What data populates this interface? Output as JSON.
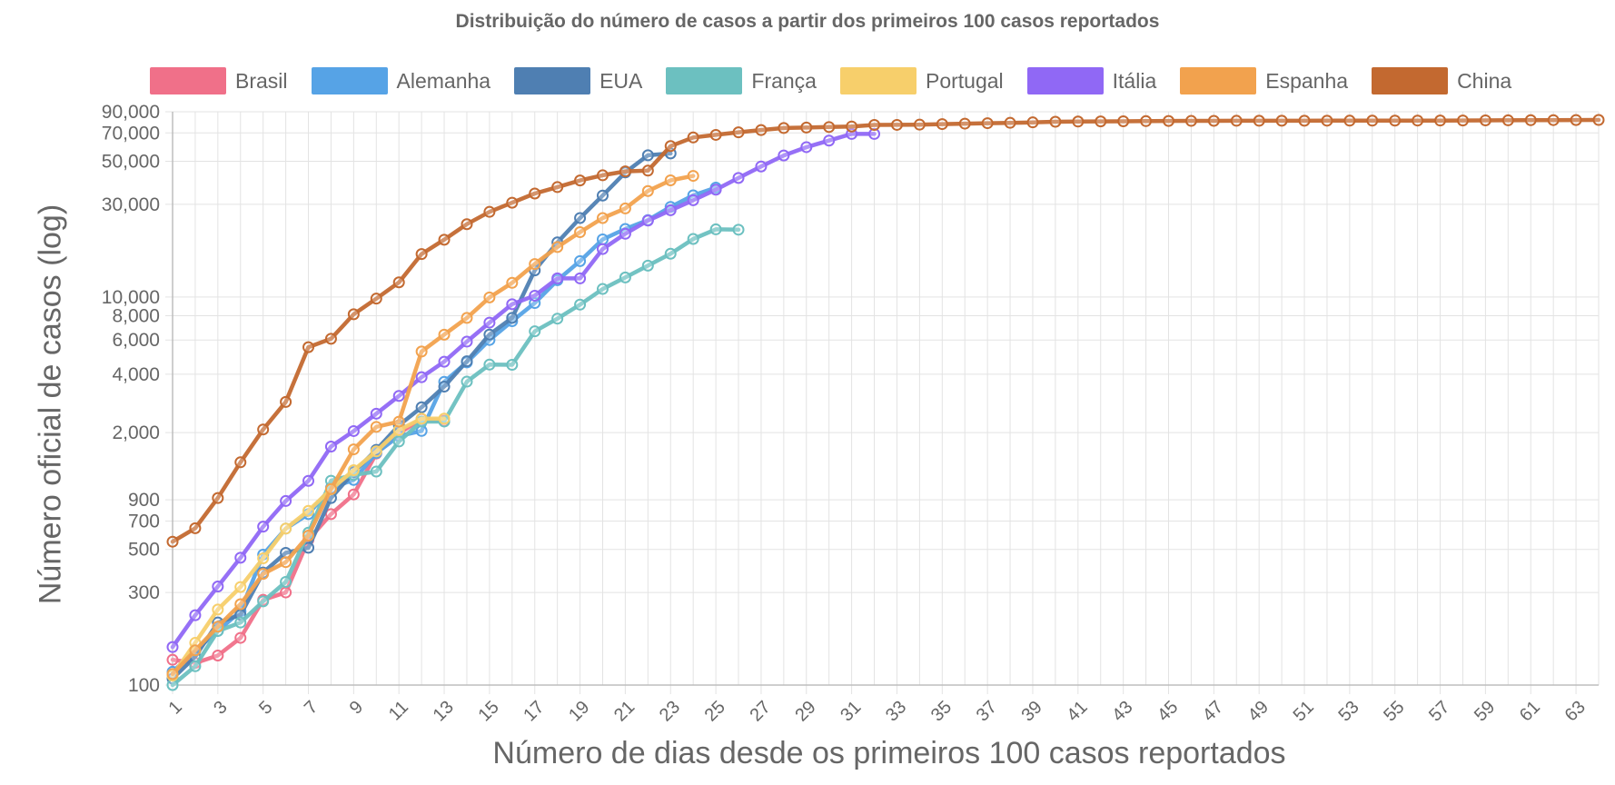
{
  "chart_data": {
    "type": "line",
    "title": "Distribuição do número de casos a partir dos primeiros 100 casos reportados",
    "xlabel": "Número de dias desde os primeiros 100 casos reportados",
    "ylabel": "Número oficial de casos (log)",
    "y_scale": "log",
    "ylim": [
      100,
      90000
    ],
    "xlim": [
      1,
      64
    ],
    "grid": true,
    "legend_position": "top",
    "x_tick_labels": [
      "1",
      "3",
      "5",
      "7",
      "9",
      "11",
      "13",
      "15",
      "17",
      "19",
      "21",
      "23",
      "25",
      "27",
      "29",
      "31",
      "33",
      "35",
      "37",
      "39",
      "41",
      "43",
      "45",
      "47",
      "49",
      "51",
      "53",
      "55",
      "57",
      "59",
      "61",
      "63"
    ],
    "y_tick_labels": [
      {
        "value": 90000,
        "label": "90,000"
      },
      {
        "value": 70000,
        "label": "70,000"
      },
      {
        "value": 50000,
        "label": "50,000"
      },
      {
        "value": 30000,
        "label": "30,000"
      },
      {
        "value": 10000,
        "label": "10,000"
      },
      {
        "value": 8000,
        "label": "8,000"
      },
      {
        "value": 6000,
        "label": "6,000"
      },
      {
        "value": 4000,
        "label": "4,000"
      },
      {
        "value": 2000,
        "label": "2,000"
      },
      {
        "value": 900,
        "label": "900"
      },
      {
        "value": 700,
        "label": "700"
      },
      {
        "value": 500,
        "label": "500"
      },
      {
        "value": 300,
        "label": "300"
      },
      {
        "value": 100,
        "label": "100"
      }
    ],
    "series": [
      {
        "name": "Brasil",
        "color": "#f07089",
        "values": [
          135,
          130,
          142,
          175,
          275,
          300,
          560,
          760,
          960,
          1560,
          1980,
          2350,
          2300
        ]
      },
      {
        "name": "Alemanha",
        "color": "#56a3e6",
        "values": [
          117,
          150,
          190,
          240,
          470,
          640,
          760,
          1040,
          1140,
          1570,
          1920,
          2040,
          3650,
          4600,
          6000,
          7500,
          9300,
          12200,
          15300,
          19800,
          22400,
          24900,
          29100,
          33400,
          36600
        ]
      },
      {
        "name": "EUA",
        "color": "#4f7fb2",
        "values": [
          108,
          140,
          210,
          230,
          380,
          480,
          510,
          920,
          1250,
          1630,
          2180,
          2700,
          3450,
          4660,
          6400,
          7800,
          13700,
          19100,
          25500,
          33300,
          43800,
          53700,
          54900
        ]
      },
      {
        "name": "França",
        "color": "#6cc0c0",
        "values": [
          100,
          125,
          190,
          210,
          270,
          340,
          610,
          1130,
          1210,
          1260,
          1800,
          2280,
          2280,
          3660,
          4480,
          4470,
          6650,
          7730,
          9130,
          10990,
          12600,
          14500,
          16700,
          19900,
          22300,
          22200
        ]
      },
      {
        "name": "Portugal",
        "color": "#f7cf6b",
        "values": [
          112,
          165,
          245,
          320,
          450,
          640,
          790,
          1020,
          1280,
          1600,
          2060,
          2360,
          2360
        ]
      },
      {
        "name": "Itália",
        "color": "#9068f5",
        "values": [
          157,
          229,
          322,
          453,
          655,
          888,
          1128,
          1694,
          2036,
          2502,
          3089,
          3858,
          4636,
          5883,
          7375,
          9172,
          10149,
          12462,
          12462,
          17660,
          21157,
          24747,
          27980,
          31506,
          35713,
          41035,
          47021,
          53578,
          59138,
          63927,
          69176,
          69176
        ]
      },
      {
        "name": "Espanha",
        "color": "#f2a24e",
        "values": [
          114,
          151,
          200,
          261,
          374,
          430,
          589,
          1024,
          1639,
          2140,
          2277,
          5232,
          6391,
          7798,
          9942,
          11826,
          14769,
          18077,
          21571,
          25496,
          28572,
          35136,
          39885,
          42058
        ]
      },
      {
        "name": "China",
        "color": "#c36930",
        "values": [
          548,
          643,
          920,
          1406,
          2075,
          2877,
          5509,
          6087,
          8141,
          9802,
          11891,
          16630,
          19716,
          23707,
          27440,
          30587,
          34110,
          36814,
          39829,
          42354,
          44386,
          44759,
          59895,
          66358,
          68413,
          70513,
          72434,
          74211,
          74619,
          75077,
          75550,
          77001,
          77022,
          77241,
          77754,
          78166,
          78600,
          78928,
          79356,
          79932,
          80136,
          80261,
          80386,
          80537,
          80690,
          80770,
          80823,
          80860,
          80887,
          80921,
          80932,
          80945,
          80977,
          81003,
          81033,
          81058,
          81102,
          81156,
          81250,
          81305,
          81435,
          81498,
          81591,
          81661
        ]
      }
    ]
  }
}
